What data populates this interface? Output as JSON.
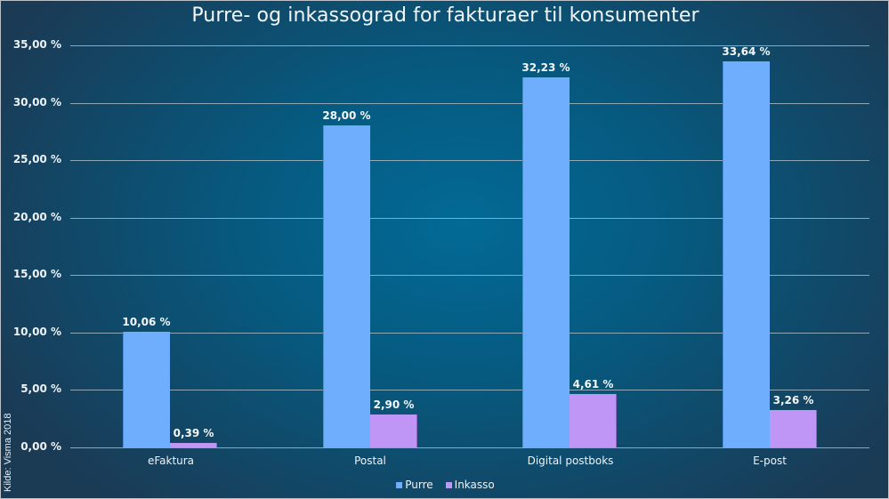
{
  "chart_data": {
    "type": "bar",
    "title": "Purre- og inkassograd for fakturaer til konsumenter",
    "source_note": "Kilde: Visma 2018",
    "xlabel": "",
    "ylabel": "",
    "ylim": [
      0,
      35
    ],
    "y_ticks": [
      "0,00 %",
      "5,00 %",
      "10,00 %",
      "15,00 %",
      "20,00 %",
      "25,00 %",
      "30,00 %",
      "35,00 %"
    ],
    "grid": true,
    "legend_position": "bottom",
    "categories": [
      "eFaktura",
      "Postal",
      "Digital postboks",
      "E-post"
    ],
    "series": [
      {
        "name": "Purre",
        "color": "#6eaefc",
        "values": [
          10.06,
          28.0,
          32.23,
          33.64
        ],
        "labels": [
          "10,06 %",
          "28,00 %",
          "32,23 %",
          "33,64 %"
        ]
      },
      {
        "name": "Inkasso",
        "color": "#bf95f5",
        "values": [
          0.39,
          2.9,
          4.61,
          3.26
        ],
        "labels": [
          "0,39 %",
          "2,90 %",
          "4,61 %",
          "3,26 %"
        ]
      }
    ]
  }
}
